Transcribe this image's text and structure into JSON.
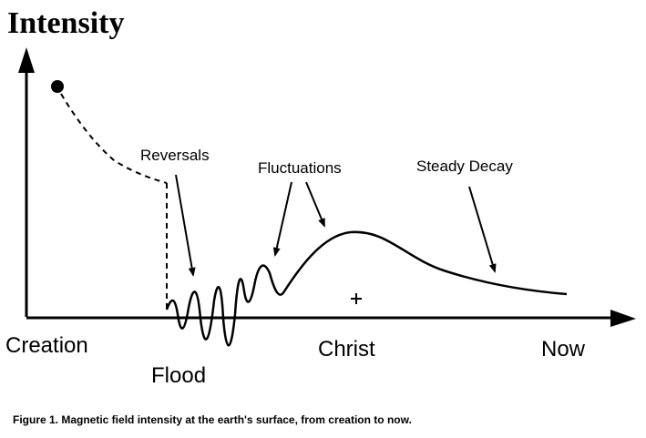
{
  "chart_data": {
    "type": "line",
    "ylabel": "Intensity",
    "x_tick_labels": [
      "Creation",
      "Flood",
      "Christ",
      "Now"
    ],
    "annotations": [
      "Reversals",
      "Fluctuations",
      "Steady Decay"
    ],
    "grid": false,
    "legend": "none",
    "line_color": "#000000"
  },
  "caption": "Figure 1. Magnetic field intensity at the earth's surface, from creation to now."
}
